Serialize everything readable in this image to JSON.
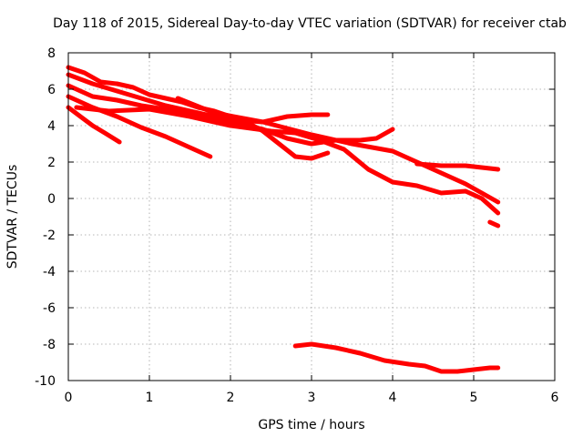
{
  "chart_data": {
    "type": "line",
    "title": "Day 118 of 2015, Sidereal Day-to-day VTEC variation (SDTVAR) for receiver ctab",
    "xlabel": "GPS time / hours",
    "ylabel": "SDTVAR / TECUs",
    "xlim": [
      0,
      6
    ],
    "ylim": [
      -10,
      8
    ],
    "xticks": [
      0,
      1,
      2,
      3,
      4,
      5,
      6
    ],
    "yticks": [
      -10,
      -8,
      -6,
      -4,
      -2,
      0,
      2,
      4,
      6,
      8
    ],
    "grid": true,
    "line_color": "#ff0000",
    "series": [
      {
        "name": "s1",
        "x": [
          0,
          0.2,
          0.4,
          0.6,
          0.8,
          1.0,
          1.2,
          1.4,
          1.6,
          1.8,
          2.0,
          2.2,
          2.4,
          2.6,
          2.8,
          3.0,
          3.2
        ],
        "y": [
          7.2,
          6.9,
          6.4,
          6.3,
          6.1,
          5.7,
          5.5,
          5.3,
          5.0,
          4.8,
          4.5,
          4.2,
          3.7,
          3.0,
          2.3,
          2.2,
          2.5
        ]
      },
      {
        "name": "s2",
        "x": [
          0,
          0.3,
          0.6,
          0.9,
          1.2,
          1.5,
          1.8,
          2.1,
          2.4,
          2.7,
          3.0,
          3.2
        ],
        "y": [
          6.8,
          6.3,
          5.9,
          5.5,
          5.1,
          4.8,
          4.5,
          4.3,
          4.2,
          4.5,
          4.6,
          4.6
        ]
      },
      {
        "name": "s3",
        "x": [
          0,
          0.3,
          0.6,
          0.9,
          1.2,
          1.5,
          1.8,
          2.1,
          2.4,
          2.7,
          3.0,
          3.3,
          3.6,
          3.8,
          4.0
        ],
        "y": [
          6.2,
          5.6,
          5.4,
          5.1,
          4.9,
          4.7,
          4.4,
          4.1,
          3.8,
          3.3,
          3.0,
          3.2,
          3.2,
          3.3,
          3.8
        ]
      },
      {
        "name": "s4",
        "x": [
          0,
          0.15,
          0.3,
          0.45,
          0.63
        ],
        "y": [
          5.0,
          4.5,
          4.0,
          3.6,
          3.1
        ]
      },
      {
        "name": "s5",
        "x": [
          0,
          0.3,
          0.6,
          0.9,
          1.2,
          1.5,
          1.75
        ],
        "y": [
          5.6,
          5.0,
          4.5,
          3.9,
          3.4,
          2.8,
          2.3
        ]
      },
      {
        "name": "s6",
        "x": [
          0.1,
          0.5,
          1.0,
          1.5,
          2.0,
          2.5,
          2.8,
          3.1,
          3.4,
          3.7,
          4.0,
          4.3,
          4.6,
          4.9,
          5.1,
          5.3
        ],
        "y": [
          5.0,
          4.8,
          4.9,
          4.5,
          4.0,
          3.7,
          3.6,
          3.2,
          2.7,
          1.6,
          0.9,
          0.7,
          0.3,
          0.4,
          0.0,
          -0.8
        ]
      },
      {
        "name": "s7",
        "x": [
          1.35,
          1.8,
          2.4,
          3.0,
          3.5,
          4.0,
          4.3,
          4.6,
          4.9,
          5.1,
          5.3
        ],
        "y": [
          5.5,
          4.7,
          4.2,
          3.5,
          3.0,
          2.6,
          2.0,
          1.4,
          0.8,
          0.3,
          -0.2
        ]
      },
      {
        "name": "s8",
        "x": [
          4.3,
          4.6,
          4.9,
          5.1,
          5.3
        ],
        "y": [
          1.9,
          1.8,
          1.8,
          1.7,
          1.6
        ]
      },
      {
        "name": "s9",
        "x": [
          5.2,
          5.3
        ],
        "y": [
          -1.3,
          -1.5
        ]
      },
      {
        "name": "s10",
        "x": [
          2.8,
          3.0,
          3.3,
          3.6,
          3.9,
          4.2,
          4.4,
          4.6,
          4.8,
          5.0,
          5.2,
          5.3
        ],
        "y": [
          -8.1,
          -8.0,
          -8.2,
          -8.5,
          -8.9,
          -9.1,
          -9.2,
          -9.5,
          -9.5,
          -9.4,
          -9.3,
          -9.3
        ]
      }
    ]
  }
}
